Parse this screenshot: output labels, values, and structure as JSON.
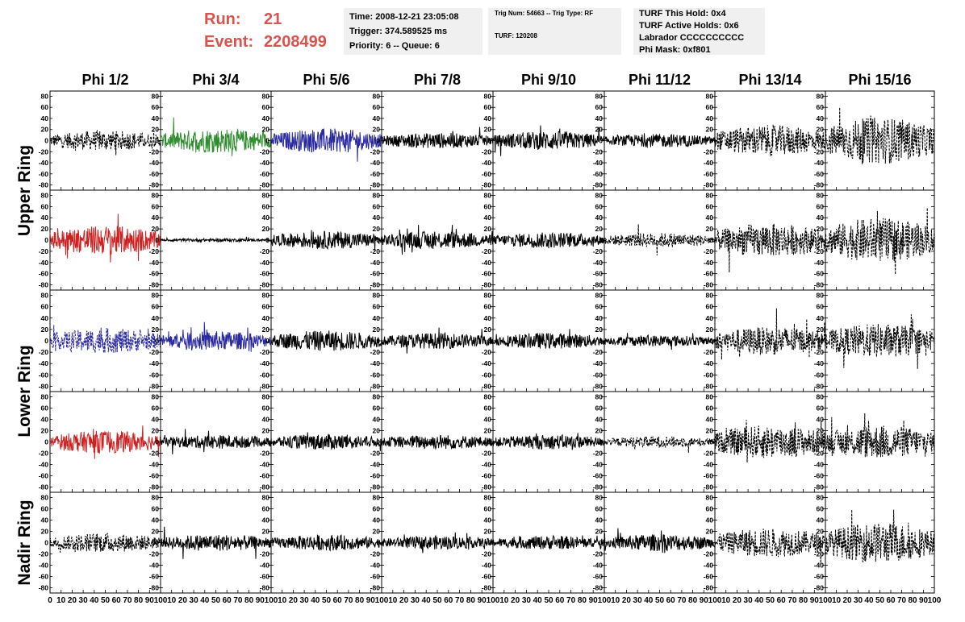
{
  "header": {
    "run_label": "Run:",
    "run_value": "21",
    "event_label": "Event:",
    "event_value": "2208499"
  },
  "info_box_1": {
    "time": "Time: 2008-12-21 23:05:08",
    "trigger": "Trigger: 374.589525 ms",
    "priority": "Priority: 6 -- Queue: 6"
  },
  "info_box_2": {
    "trig": "Trig Num: 54663 -- Trig Type: RF",
    "turf": "TURF: 120208"
  },
  "info_box_3": {
    "this_hold": "TURF This Hold: 0x4",
    "active_holds": "TURF Active Holds: 0x6",
    "labrador": "Labrador CCCCCCCCCC",
    "phi_mask": "Phi Mask: 0xf801"
  },
  "chart_data": {
    "type": "line",
    "layout": "grid",
    "columns": [
      "Phi 1/2",
      "Phi 3/4",
      "Phi 5/6",
      "Phi 7/8",
      "Phi 9/10",
      "Phi 11/12",
      "Phi 13/14",
      "Phi 15/16"
    ],
    "row_groups": [
      {
        "label": "Upper Ring",
        "rows": [
          0,
          1
        ]
      },
      {
        "label": "Lower Ring",
        "rows": [
          2,
          3
        ]
      },
      {
        "label": "Nadir Ring",
        "rows": [
          4
        ]
      }
    ],
    "ylim": [
      -85,
      85
    ],
    "yticks": [
      80,
      60,
      40,
      20,
      0,
      -20,
      -40,
      -60,
      -80
    ],
    "xlim": [
      0,
      100
    ],
    "xticks": [
      0,
      10,
      20,
      30,
      40,
      50,
      60,
      70,
      80,
      90,
      100
    ],
    "x_axis_labels": [
      "0",
      "10",
      "20",
      "30",
      "40",
      "50",
      "60",
      "70",
      "80",
      "90",
      "100"
    ],
    "y_axis_labels": [
      "80",
      "60",
      "40",
      "20",
      "0",
      "-20",
      "-40",
      "-60",
      "-80"
    ],
    "traces": [
      [
        {
          "color": "#000000",
          "dash": true,
          "amp": 18
        },
        {
          "color": "#2e8b2e",
          "dash": false,
          "amp": 22
        },
        {
          "color": "#2a2aa0",
          "dash": false,
          "amp": 22
        },
        {
          "color": "#000000",
          "dash": false,
          "amp": 14
        },
        {
          "color": "#000000",
          "dash": false,
          "amp": 17
        },
        {
          "color": "#000000",
          "dash": false,
          "amp": 12
        },
        {
          "color": "#000000",
          "dash": true,
          "amp": 28
        },
        {
          "color": "#000000",
          "dash": true,
          "amp": 42
        }
      ],
      [
        {
          "color": "#cc2222",
          "dash": false,
          "amp": 26
        },
        {
          "color": "#000000",
          "dash": false,
          "amp": 3
        },
        {
          "color": "#000000",
          "dash": false,
          "amp": 16
        },
        {
          "color": "#000000",
          "dash": false,
          "amp": 16
        },
        {
          "color": "#000000",
          "dash": false,
          "amp": 14
        },
        {
          "color": "#000000",
          "dash": true,
          "amp": 13
        },
        {
          "color": "#000000",
          "dash": true,
          "amp": 30
        },
        {
          "color": "#000000",
          "dash": true,
          "amp": 40
        }
      ],
      [
        {
          "color": "#2a2aa0",
          "dash": true,
          "amp": 22
        },
        {
          "color": "#2a2aa0",
          "dash": false,
          "amp": 17
        },
        {
          "color": "#000000",
          "dash": false,
          "amp": 18
        },
        {
          "color": "#000000",
          "dash": false,
          "amp": 14
        },
        {
          "color": "#000000",
          "dash": false,
          "amp": 14
        },
        {
          "color": "#000000",
          "dash": false,
          "amp": 10
        },
        {
          "color": "#000000",
          "dash": true,
          "amp": 25
        },
        {
          "color": "#000000",
          "dash": true,
          "amp": 30
        }
      ],
      [
        {
          "color": "#cc2222",
          "dash": false,
          "amp": 20
        },
        {
          "color": "#000000",
          "dash": false,
          "amp": 12
        },
        {
          "color": "#000000",
          "dash": false,
          "amp": 14
        },
        {
          "color": "#000000",
          "dash": false,
          "amp": 13
        },
        {
          "color": "#000000",
          "dash": false,
          "amp": 13
        },
        {
          "color": "#000000",
          "dash": true,
          "amp": 10
        },
        {
          "color": "#000000",
          "dash": true,
          "amp": 30
        },
        {
          "color": "#000000",
          "dash": true,
          "amp": 30
        }
      ],
      [
        {
          "color": "#000000",
          "dash": true,
          "amp": 17
        },
        {
          "color": "#000000",
          "dash": false,
          "amp": 15
        },
        {
          "color": "#000000",
          "dash": false,
          "amp": 14
        },
        {
          "color": "#000000",
          "dash": false,
          "amp": 12
        },
        {
          "color": "#000000",
          "dash": false,
          "amp": 12
        },
        {
          "color": "#000000",
          "dash": false,
          "amp": 15
        },
        {
          "color": "#000000",
          "dash": true,
          "amp": 26
        },
        {
          "color": "#000000",
          "dash": true,
          "amp": 36
        }
      ]
    ]
  }
}
